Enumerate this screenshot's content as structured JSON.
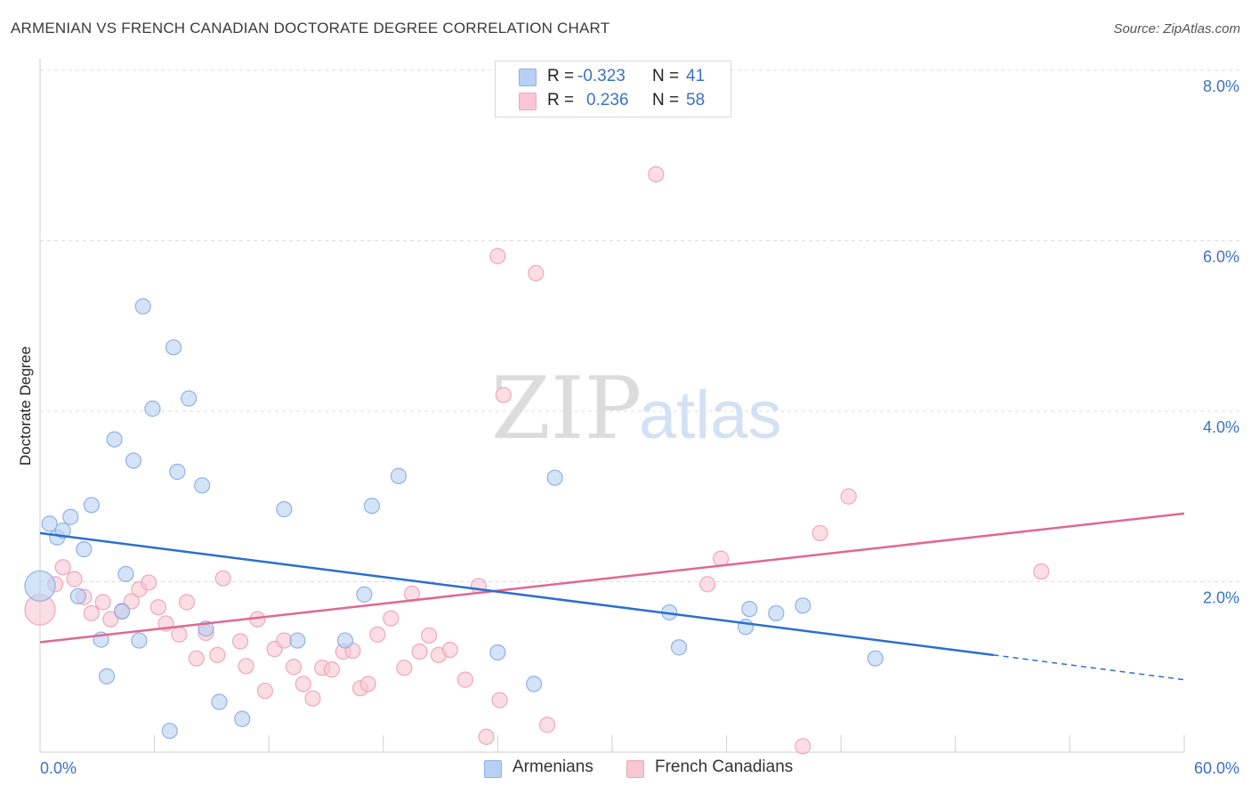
{
  "header": {
    "title": "ARMENIAN VS FRENCH CANADIAN DOCTORATE DEGREE CORRELATION CHART",
    "source": "Source: ZipAtlas.com"
  },
  "legend": {
    "rows": [
      {
        "r_label": "R =",
        "r_value": "-0.323",
        "n_label": "N =",
        "n_value": "41"
      },
      {
        "r_label": "R =",
        "r_value": "0.236",
        "n_label": "N =",
        "n_value": "58"
      }
    ]
  },
  "bottom_legend": [
    {
      "label": "Armenians"
    },
    {
      "label": "French Canadians"
    }
  ],
  "watermark": {
    "zip": "ZIP",
    "atlas": "atlas"
  },
  "colors": {
    "armenians_fill": "#b7d0f3",
    "armenians_stroke": "#8eb2e4",
    "armenians_line": "#2a6fd0",
    "french_fill": "#f8c6d4",
    "french_stroke": "#eea7bc",
    "french_line": "#e0688f",
    "tick_label": "#3a72c4",
    "grid": "#dcdcdc"
  },
  "chart_data": {
    "type": "scatter",
    "title": "ARMENIAN VS FRENCH CANADIAN DOCTORATE DEGREE CORRELATION CHART",
    "xlabel": "",
    "ylabel": "Doctorate Degree",
    "xlim": [
      0,
      60
    ],
    "ylim": [
      0,
      8.0
    ],
    "x_tick_labels": [
      "0.0%",
      "60.0%"
    ],
    "y_ticks": [
      2.0,
      4.0,
      6.0,
      8.0
    ],
    "y_tick_labels": [
      "2.0%",
      "4.0%",
      "6.0%",
      "8.0%"
    ],
    "grid": true,
    "legend_position": "top-center",
    "series": [
      {
        "name": "Armenians",
        "r": -0.323,
        "n": 41,
        "trend": {
          "x0": 0,
          "y0": 2.57,
          "x1": 50,
          "y1": 1.14,
          "dashed_to_x": 60,
          "dashed_to_y": 0.85
        },
        "points": [
          {
            "x": 0.0,
            "y": 1.95,
            "big": true
          },
          {
            "x": 0.5,
            "y": 2.68
          },
          {
            "x": 0.9,
            "y": 2.52
          },
          {
            "x": 1.2,
            "y": 2.6
          },
          {
            "x": 1.6,
            "y": 2.76
          },
          {
            "x": 2.0,
            "y": 1.83
          },
          {
            "x": 2.3,
            "y": 2.38
          },
          {
            "x": 2.7,
            "y": 2.9
          },
          {
            "x": 3.2,
            "y": 1.32
          },
          {
            "x": 3.5,
            "y": 0.89
          },
          {
            "x": 3.9,
            "y": 3.67
          },
          {
            "x": 4.3,
            "y": 1.65
          },
          {
            "x": 4.5,
            "y": 2.09
          },
          {
            "x": 4.9,
            "y": 3.42
          },
          {
            "x": 5.2,
            "y": 1.31
          },
          {
            "x": 5.4,
            "y": 5.23
          },
          {
            "x": 5.9,
            "y": 4.03
          },
          {
            "x": 6.8,
            "y": 0.25
          },
          {
            "x": 7.0,
            "y": 4.75
          },
          {
            "x": 7.2,
            "y": 3.29
          },
          {
            "x": 7.8,
            "y": 4.15
          },
          {
            "x": 8.5,
            "y": 3.13
          },
          {
            "x": 8.7,
            "y": 1.45
          },
          {
            "x": 9.4,
            "y": 0.59
          },
          {
            "x": 10.6,
            "y": 0.39
          },
          {
            "x": 12.8,
            "y": 2.85
          },
          {
            "x": 13.5,
            "y": 1.31
          },
          {
            "x": 16.0,
            "y": 1.31
          },
          {
            "x": 17.0,
            "y": 1.85
          },
          {
            "x": 17.4,
            "y": 2.89
          },
          {
            "x": 18.8,
            "y": 3.24
          },
          {
            "x": 24.0,
            "y": 1.17
          },
          {
            "x": 25.9,
            "y": 0.8
          },
          {
            "x": 27.0,
            "y": 3.22
          },
          {
            "x": 33.0,
            "y": 1.64
          },
          {
            "x": 33.5,
            "y": 1.23
          },
          {
            "x": 37.0,
            "y": 1.47
          },
          {
            "x": 37.2,
            "y": 1.68
          },
          {
            "x": 38.6,
            "y": 1.63
          },
          {
            "x": 40.0,
            "y": 1.72
          },
          {
            "x": 43.8,
            "y": 1.1
          }
        ]
      },
      {
        "name": "French Canadians",
        "r": 0.236,
        "n": 58,
        "trend": {
          "x0": 0,
          "y0": 1.29,
          "x1": 60,
          "y1": 2.8
        },
        "points": [
          {
            "x": 0.0,
            "y": 1.67,
            "big": true
          },
          {
            "x": 0.8,
            "y": 1.97
          },
          {
            "x": 1.2,
            "y": 2.17
          },
          {
            "x": 1.8,
            "y": 2.03
          },
          {
            "x": 2.3,
            "y": 1.82
          },
          {
            "x": 2.7,
            "y": 1.63
          },
          {
            "x": 3.3,
            "y": 1.76
          },
          {
            "x": 3.7,
            "y": 1.56
          },
          {
            "x": 4.3,
            "y": 1.66
          },
          {
            "x": 4.8,
            "y": 1.77
          },
          {
            "x": 5.2,
            "y": 1.91
          },
          {
            "x": 5.7,
            "y": 1.99
          },
          {
            "x": 6.2,
            "y": 1.7
          },
          {
            "x": 6.6,
            "y": 1.51
          },
          {
            "x": 7.3,
            "y": 1.38
          },
          {
            "x": 7.7,
            "y": 1.76
          },
          {
            "x": 8.2,
            "y": 1.1
          },
          {
            "x": 8.7,
            "y": 1.4
          },
          {
            "x": 9.3,
            "y": 1.14
          },
          {
            "x": 9.6,
            "y": 2.04
          },
          {
            "x": 10.5,
            "y": 1.3
          },
          {
            "x": 10.8,
            "y": 1.01
          },
          {
            "x": 11.4,
            "y": 1.56
          },
          {
            "x": 11.8,
            "y": 0.72
          },
          {
            "x": 12.3,
            "y": 1.21
          },
          {
            "x": 12.8,
            "y": 1.31
          },
          {
            "x": 13.3,
            "y": 1.0
          },
          {
            "x": 13.8,
            "y": 0.8
          },
          {
            "x": 14.3,
            "y": 0.63
          },
          {
            "x": 14.8,
            "y": 0.99
          },
          {
            "x": 15.3,
            "y": 0.97
          },
          {
            "x": 15.9,
            "y": 1.18
          },
          {
            "x": 16.4,
            "y": 1.19
          },
          {
            "x": 16.8,
            "y": 0.75
          },
          {
            "x": 17.2,
            "y": 0.8
          },
          {
            "x": 17.7,
            "y": 1.38
          },
          {
            "x": 18.4,
            "y": 1.57
          },
          {
            "x": 19.1,
            "y": 0.99
          },
          {
            "x": 19.5,
            "y": 1.86
          },
          {
            "x": 19.9,
            "y": 1.18
          },
          {
            "x": 20.4,
            "y": 1.37
          },
          {
            "x": 20.9,
            "y": 1.14
          },
          {
            "x": 21.5,
            "y": 1.2
          },
          {
            "x": 22.3,
            "y": 0.85
          },
          {
            "x": 23.0,
            "y": 1.95
          },
          {
            "x": 23.4,
            "y": 0.18
          },
          {
            "x": 24.0,
            "y": 5.82
          },
          {
            "x": 24.1,
            "y": 0.61
          },
          {
            "x": 24.3,
            "y": 4.19
          },
          {
            "x": 26.0,
            "y": 5.62
          },
          {
            "x": 26.6,
            "y": 0.32
          },
          {
            "x": 32.3,
            "y": 6.78
          },
          {
            "x": 35.0,
            "y": 1.97
          },
          {
            "x": 35.7,
            "y": 2.27
          },
          {
            "x": 40.0,
            "y": 0.07
          },
          {
            "x": 40.9,
            "y": 2.57
          },
          {
            "x": 42.4,
            "y": 3.0
          },
          {
            "x": 52.5,
            "y": 2.12
          }
        ]
      }
    ]
  }
}
